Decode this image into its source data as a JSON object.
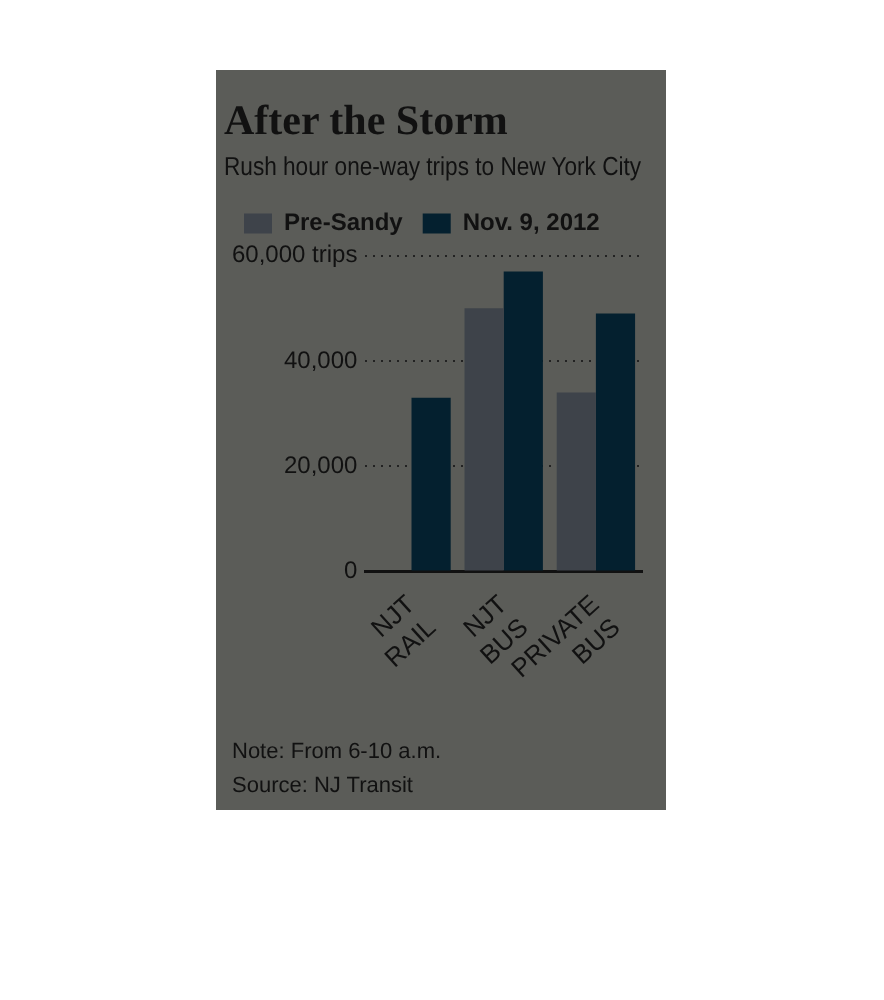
{
  "chart_data": {
    "type": "bar",
    "title": "After the Storm",
    "subtitle": "Rush hour one-way trips to New York City",
    "categories": [
      "NJT RAIL",
      "NJT BUS",
      "PRIVATE BUS"
    ],
    "series": [
      {
        "name": "Pre-Sandy",
        "color": "#3e434a",
        "values": [
          null,
          50000,
          34000
        ]
      },
      {
        "name": "Nov. 9, 2012",
        "color": "#04202f",
        "values": [
          33000,
          57000,
          49000
        ]
      }
    ],
    "ylim": [
      0,
      60000
    ],
    "yticks": [
      0,
      {
        "value": 20000,
        "label": "20,000"
      },
      {
        "value": 40000,
        "label": "40,000"
      },
      {
        "value": 60000,
        "label": "60,000 trips"
      }
    ],
    "grid": "y",
    "legend": "top left",
    "annotations": [
      "Note: From 6-10 a.m.",
      "Source: NJ Transit"
    ]
  }
}
